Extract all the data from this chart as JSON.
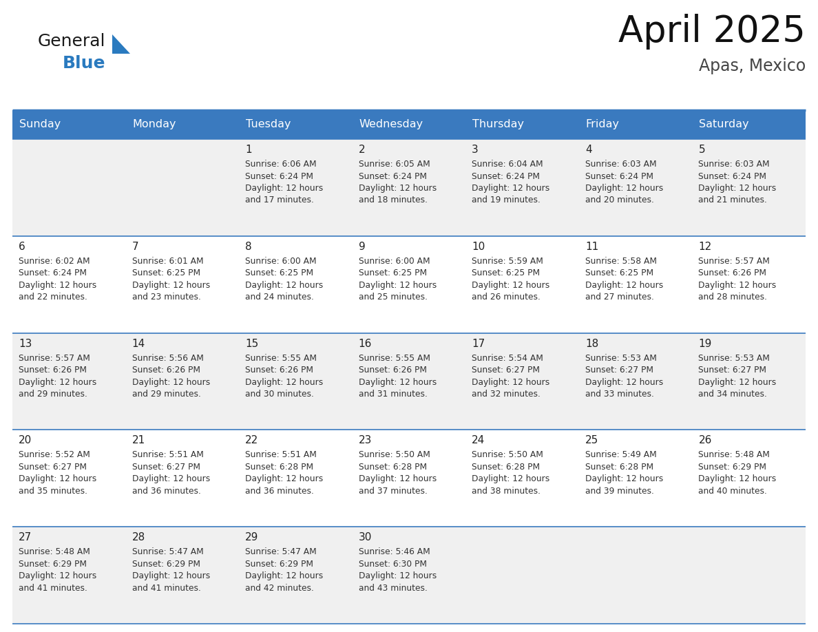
{
  "title": "April 2025",
  "subtitle": "Apas, Mexico",
  "header_bg": "#3a7abf",
  "header_text": "#ffffff",
  "day_names": [
    "Sunday",
    "Monday",
    "Tuesday",
    "Wednesday",
    "Thursday",
    "Friday",
    "Saturday"
  ],
  "row_bg_odd": "#f0f0f0",
  "row_bg_even": "#ffffff",
  "line_color": "#3a7abf",
  "text_color": "#333333",
  "number_color": "#222222",
  "logo_black": "#1a1a1a",
  "logo_blue_text": "#2a7abf",
  "logo_triangle": "#2a7abf",
  "calendar": [
    [
      {
        "day": "",
        "sunrise": "",
        "sunset": "",
        "daylight": ""
      },
      {
        "day": "",
        "sunrise": "",
        "sunset": "",
        "daylight": ""
      },
      {
        "day": "1",
        "sunrise": "Sunrise: 6:06 AM",
        "sunset": "Sunset: 6:24 PM",
        "daylight": "Daylight: 12 hours\nand 17 minutes."
      },
      {
        "day": "2",
        "sunrise": "Sunrise: 6:05 AM",
        "sunset": "Sunset: 6:24 PM",
        "daylight": "Daylight: 12 hours\nand 18 minutes."
      },
      {
        "day": "3",
        "sunrise": "Sunrise: 6:04 AM",
        "sunset": "Sunset: 6:24 PM",
        "daylight": "Daylight: 12 hours\nand 19 minutes."
      },
      {
        "day": "4",
        "sunrise": "Sunrise: 6:03 AM",
        "sunset": "Sunset: 6:24 PM",
        "daylight": "Daylight: 12 hours\nand 20 minutes."
      },
      {
        "day": "5",
        "sunrise": "Sunrise: 6:03 AM",
        "sunset": "Sunset: 6:24 PM",
        "daylight": "Daylight: 12 hours\nand 21 minutes."
      }
    ],
    [
      {
        "day": "6",
        "sunrise": "Sunrise: 6:02 AM",
        "sunset": "Sunset: 6:24 PM",
        "daylight": "Daylight: 12 hours\nand 22 minutes."
      },
      {
        "day": "7",
        "sunrise": "Sunrise: 6:01 AM",
        "sunset": "Sunset: 6:25 PM",
        "daylight": "Daylight: 12 hours\nand 23 minutes."
      },
      {
        "day": "8",
        "sunrise": "Sunrise: 6:00 AM",
        "sunset": "Sunset: 6:25 PM",
        "daylight": "Daylight: 12 hours\nand 24 minutes."
      },
      {
        "day": "9",
        "sunrise": "Sunrise: 6:00 AM",
        "sunset": "Sunset: 6:25 PM",
        "daylight": "Daylight: 12 hours\nand 25 minutes."
      },
      {
        "day": "10",
        "sunrise": "Sunrise: 5:59 AM",
        "sunset": "Sunset: 6:25 PM",
        "daylight": "Daylight: 12 hours\nand 26 minutes."
      },
      {
        "day": "11",
        "sunrise": "Sunrise: 5:58 AM",
        "sunset": "Sunset: 6:25 PM",
        "daylight": "Daylight: 12 hours\nand 27 minutes."
      },
      {
        "day": "12",
        "sunrise": "Sunrise: 5:57 AM",
        "sunset": "Sunset: 6:26 PM",
        "daylight": "Daylight: 12 hours\nand 28 minutes."
      }
    ],
    [
      {
        "day": "13",
        "sunrise": "Sunrise: 5:57 AM",
        "sunset": "Sunset: 6:26 PM",
        "daylight": "Daylight: 12 hours\nand 29 minutes."
      },
      {
        "day": "14",
        "sunrise": "Sunrise: 5:56 AM",
        "sunset": "Sunset: 6:26 PM",
        "daylight": "Daylight: 12 hours\nand 29 minutes."
      },
      {
        "day": "15",
        "sunrise": "Sunrise: 5:55 AM",
        "sunset": "Sunset: 6:26 PM",
        "daylight": "Daylight: 12 hours\nand 30 minutes."
      },
      {
        "day": "16",
        "sunrise": "Sunrise: 5:55 AM",
        "sunset": "Sunset: 6:26 PM",
        "daylight": "Daylight: 12 hours\nand 31 minutes."
      },
      {
        "day": "17",
        "sunrise": "Sunrise: 5:54 AM",
        "sunset": "Sunset: 6:27 PM",
        "daylight": "Daylight: 12 hours\nand 32 minutes."
      },
      {
        "day": "18",
        "sunrise": "Sunrise: 5:53 AM",
        "sunset": "Sunset: 6:27 PM",
        "daylight": "Daylight: 12 hours\nand 33 minutes."
      },
      {
        "day": "19",
        "sunrise": "Sunrise: 5:53 AM",
        "sunset": "Sunset: 6:27 PM",
        "daylight": "Daylight: 12 hours\nand 34 minutes."
      }
    ],
    [
      {
        "day": "20",
        "sunrise": "Sunrise: 5:52 AM",
        "sunset": "Sunset: 6:27 PM",
        "daylight": "Daylight: 12 hours\nand 35 minutes."
      },
      {
        "day": "21",
        "sunrise": "Sunrise: 5:51 AM",
        "sunset": "Sunset: 6:27 PM",
        "daylight": "Daylight: 12 hours\nand 36 minutes."
      },
      {
        "day": "22",
        "sunrise": "Sunrise: 5:51 AM",
        "sunset": "Sunset: 6:28 PM",
        "daylight": "Daylight: 12 hours\nand 36 minutes."
      },
      {
        "day": "23",
        "sunrise": "Sunrise: 5:50 AM",
        "sunset": "Sunset: 6:28 PM",
        "daylight": "Daylight: 12 hours\nand 37 minutes."
      },
      {
        "day": "24",
        "sunrise": "Sunrise: 5:50 AM",
        "sunset": "Sunset: 6:28 PM",
        "daylight": "Daylight: 12 hours\nand 38 minutes."
      },
      {
        "day": "25",
        "sunrise": "Sunrise: 5:49 AM",
        "sunset": "Sunset: 6:28 PM",
        "daylight": "Daylight: 12 hours\nand 39 minutes."
      },
      {
        "day": "26",
        "sunrise": "Sunrise: 5:48 AM",
        "sunset": "Sunset: 6:29 PM",
        "daylight": "Daylight: 12 hours\nand 40 minutes."
      }
    ],
    [
      {
        "day": "27",
        "sunrise": "Sunrise: 5:48 AM",
        "sunset": "Sunset: 6:29 PM",
        "daylight": "Daylight: 12 hours\nand 41 minutes."
      },
      {
        "day": "28",
        "sunrise": "Sunrise: 5:47 AM",
        "sunset": "Sunset: 6:29 PM",
        "daylight": "Daylight: 12 hours\nand 41 minutes."
      },
      {
        "day": "29",
        "sunrise": "Sunrise: 5:47 AM",
        "sunset": "Sunset: 6:29 PM",
        "daylight": "Daylight: 12 hours\nand 42 minutes."
      },
      {
        "day": "30",
        "sunrise": "Sunrise: 5:46 AM",
        "sunset": "Sunset: 6:30 PM",
        "daylight": "Daylight: 12 hours\nand 43 minutes."
      },
      {
        "day": "",
        "sunrise": "",
        "sunset": "",
        "daylight": ""
      },
      {
        "day": "",
        "sunrise": "",
        "sunset": "",
        "daylight": ""
      },
      {
        "day": "",
        "sunrise": "",
        "sunset": "",
        "daylight": ""
      }
    ]
  ]
}
